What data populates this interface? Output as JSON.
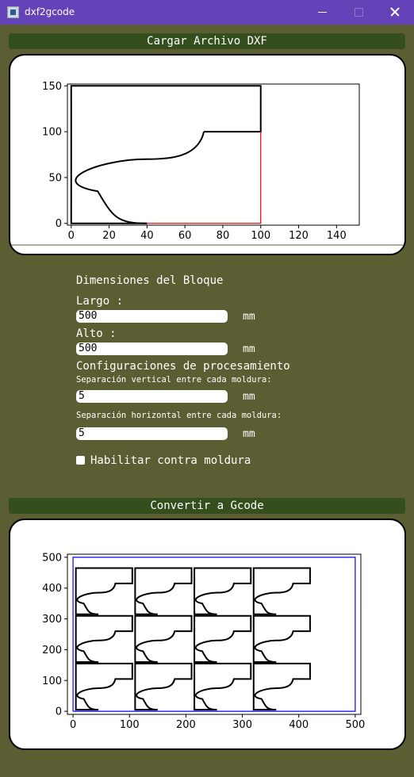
{
  "window": {
    "title": "dxf2gcode"
  },
  "buttons": {
    "load": "Cargar Archivo DXF",
    "convert": "Convertir a Gcode"
  },
  "chart_data": [
    {
      "type": "line",
      "x_ticks": [
        0,
        20,
        40,
        60,
        80,
        100,
        120,
        140
      ],
      "y_ticks": [
        0,
        50,
        100,
        150
      ],
      "xlim": [
        -2,
        152
      ],
      "ylim": [
        -2,
        152
      ],
      "series": [
        {
          "color": "#000000",
          "points": [
            [
              40,
              0
            ],
            [
              0,
              0
            ],
            [
              0,
              150
            ],
            [
              100,
              150
            ],
            [
              100,
              100
            ],
            [
              70,
              100
            ]
          ]
        },
        {
          "color": "#000000",
          "curve": "profile",
          "from": [
            70,
            100
          ],
          "to": [
            40,
            0
          ],
          "via": [
            [
              40,
              70
            ],
            [
              14,
              35
            ]
          ]
        },
        {
          "color": "#e00000",
          "points": [
            [
              40,
              0
            ],
            [
              100,
              0
            ],
            [
              100,
              100
            ]
          ]
        }
      ]
    },
    {
      "type": "line",
      "x_ticks": [
        0,
        100,
        200,
        300,
        400,
        500
      ],
      "y_ticks": [
        0,
        100,
        200,
        300,
        400,
        500
      ],
      "xlim": [
        -10,
        510
      ],
      "ylim": [
        -10,
        510
      ],
      "block": {
        "color": "#0000ff",
        "points": [
          [
            0,
            0
          ],
          [
            500,
            0
          ],
          [
            500,
            500
          ],
          [
            0,
            500
          ],
          [
            0,
            0
          ]
        ]
      },
      "grid_profile": {
        "color": "#000000",
        "cols": [
          5,
          110,
          215,
          320
        ],
        "rows": [
          5,
          160,
          315
        ]
      }
    }
  ],
  "form": {
    "block_heading": "Dimensiones del Bloque",
    "largo_label": "Largo :",
    "largo_value": "500",
    "alto_label": "Alto :",
    "alto_value": "500",
    "unit": "mm",
    "processing_heading": "Configuraciones de procesamiento",
    "vertical_label": "Separación vertical entre cada moldura:",
    "vertical_value": "5",
    "horizontal_label": "Separación horizontal entre cada moldura:",
    "horizontal_value": "5",
    "counter_label": "Habilitar contra moldura"
  }
}
